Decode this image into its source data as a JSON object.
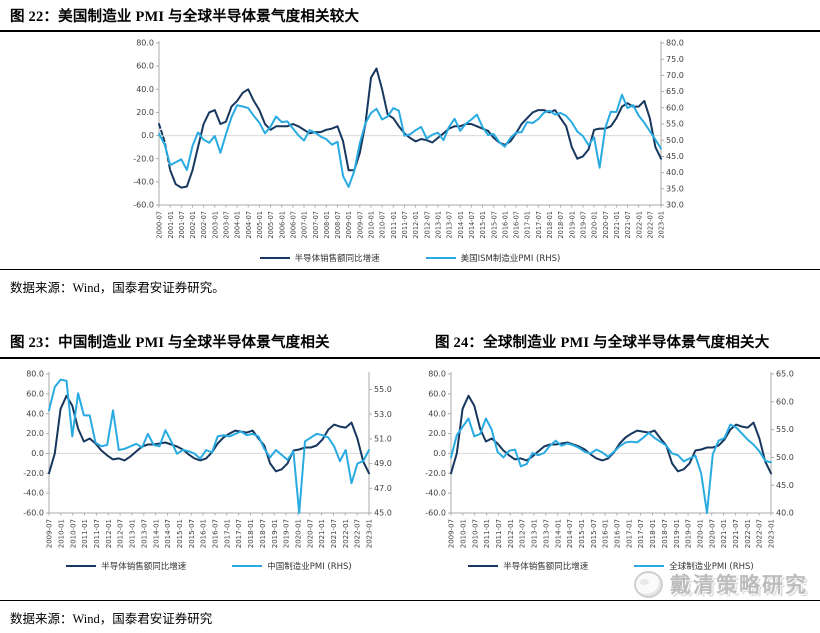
{
  "page": {
    "fig22_title": "图 22：美国制造业 PMI 与全球半导体景气度相关较大",
    "fig23_title": "图 23：中国制造业 PMI 与全球半导体景气度相关",
    "fig24_title": "图 24：全球制造业 PMI 与全球半导体景气度相关大",
    "source_top": "数据来源：Wind，国泰君安证券研究。",
    "source_bottom": "数据来源：Wind，国泰君安证券研究",
    "watermark": "戴清策略研究"
  },
  "colors": {
    "navy": "#17375E",
    "sky": "#29ABE2",
    "axis": "#ABABAB",
    "grid": "#D9D9D9",
    "tick_text": "#404040"
  },
  "chart_data": [
    {
      "type": "line",
      "title": "美国制造业PMI与全球半导体景气度",
      "x_start": "2000-07",
      "x_end": "2023-01",
      "sample_interval_months": 3,
      "left_range": [
        -60,
        80
      ],
      "left_ticks": [
        80,
        60,
        40,
        20,
        0,
        -20,
        -40,
        -60
      ],
      "right_range": [
        30,
        80
      ],
      "right_ticks": [
        80,
        75,
        70,
        65,
        60,
        55,
        50,
        45,
        40,
        35,
        30
      ],
      "grid_zero_line": true,
      "legend_position": "bottom",
      "x_labels": [
        "2000-07",
        "2001-01",
        "2001-07",
        "2002-01",
        "2002-07",
        "2003-01",
        "2003-07",
        "2004-01",
        "2004-07",
        "2005-01",
        "2005-07",
        "2006-01",
        "2006-07",
        "2007-01",
        "2007-07",
        "2008-01",
        "2008-07",
        "2009-01",
        "2009-07",
        "2010-01",
        "2010-07",
        "2011-01",
        "2011-07",
        "2012-01",
        "2012-07",
        "2013-01",
        "2013-07",
        "2014-01",
        "2014-07",
        "2015-01",
        "2015-07",
        "2016-01",
        "2016-07",
        "2017-01",
        "2017-07",
        "2018-01",
        "2018-07",
        "2019-01",
        "2019-07",
        "2020-01",
        "2020-07",
        "2021-01",
        "2021-07",
        "2022-01",
        "2022-07",
        "2023-01"
      ],
      "series": [
        {
          "name": "半导体销售额同比增速",
          "axis": "left",
          "color_key": "navy",
          "dash_prefix": 2,
          "values": [
            10,
            -5,
            -30,
            -42,
            -45,
            -44,
            -30,
            -10,
            10,
            20,
            22,
            10,
            12,
            25,
            30,
            37,
            40,
            30,
            22,
            10,
            5,
            8,
            8,
            8,
            10,
            8,
            5,
            2,
            3,
            3,
            5,
            6,
            8,
            -5,
            -30,
            -30,
            -15,
            10,
            50,
            58,
            40,
            18,
            15,
            8,
            2,
            -2,
            -5,
            -3,
            -4,
            -6,
            -2,
            2,
            6,
            8,
            8,
            10,
            10,
            8,
            6,
            4,
            -2,
            -6,
            -8,
            -5,
            2,
            10,
            15,
            20,
            22,
            22,
            20,
            22,
            15,
            8,
            -10,
            -20,
            -18,
            -12,
            5,
            6,
            6,
            8,
            15,
            25,
            28,
            25,
            25,
            30,
            15,
            -10,
            -20
          ]
        },
        {
          "name": "美国ISM制造业PMI (RHS)",
          "axis": "right",
          "color_key": "sky",
          "values": [
            52,
            48.7,
            42.3,
            43.2,
            44.1,
            40.8,
            48.2,
            52.4,
            50.2,
            49.2,
            51.3,
            46.1,
            51.8,
            57.1,
            60.8,
            60.4,
            59.9,
            57.5,
            55.4,
            52.1,
            54.2,
            57.3,
            55.6,
            55.8,
            53.6,
            51.5,
            49.9,
            53.1,
            52.3,
            51.1,
            50.3,
            48.6,
            49.5,
            38.9,
            35.6,
            40.4,
            49,
            55.2,
            58.4,
            59.7,
            56.4,
            57.3,
            59.9,
            59.1,
            51.4,
            51.8,
            53.1,
            54.1,
            50.5,
            51.7,
            52.3,
            50,
            54.1,
            56.6,
            52.9,
            55.1,
            56.4,
            57.9,
            54.1,
            51.6,
            51.9,
            49.4,
            48,
            50.7,
            52.3,
            52.5,
            55.6,
            55.3,
            56.5,
            58.5,
            59.1,
            57.9,
            58.4,
            57.5,
            55.5,
            52.7,
            51.3,
            48.5,
            50.9,
            41.5,
            53.7,
            58.8,
            58.7,
            64,
            59.9,
            60.8,
            57.6,
            55.4,
            52.8,
            50.2,
            47.4
          ]
        }
      ]
    },
    {
      "type": "line",
      "title": "中国制造业PMI与全球半导体景气度",
      "x_start": "2009-07",
      "x_end": "2023-01",
      "sample_interval_months": 3,
      "left_range": [
        -60,
        80
      ],
      "left_ticks": [
        80,
        60,
        40,
        20,
        0,
        -20,
        -40,
        -60
      ],
      "right_range": [
        45,
        56.25
      ],
      "right_ticks": [
        55,
        53,
        51,
        49,
        47,
        45
      ],
      "grid_zero_line": true,
      "legend_position": "bottom",
      "x_labels": [
        "2009-07",
        "2010-01",
        "2010-07",
        "2011-01",
        "2011-07",
        "2012-01",
        "2012-07",
        "2013-01",
        "2013-07",
        "2014-01",
        "2014-07",
        "2015-01",
        "2015-07",
        "2016-01",
        "2016-07",
        "2017-01",
        "2017-07",
        "2018-01",
        "2018-07",
        "2019-01",
        "2019-07",
        "2020-01",
        "2020-07",
        "2021-01",
        "2021-07",
        "2022-01",
        "2022-07",
        "2023-01"
      ],
      "series": [
        {
          "name": "半导体销售额同比增速",
          "axis": "left",
          "color_key": "navy",
          "values": [
            -20,
            0,
            45,
            58,
            48,
            25,
            12,
            15,
            10,
            3,
            -2,
            -6,
            -5,
            -7,
            -3,
            2,
            7,
            9,
            9,
            10,
            11,
            9,
            7,
            4,
            -1,
            -5,
            -7,
            -5,
            1,
            10,
            16,
            20,
            23,
            22,
            21,
            23,
            15,
            8,
            -10,
            -18,
            -16,
            -10,
            3,
            4,
            6,
            6,
            8,
            14,
            24,
            29,
            27,
            26,
            31,
            15,
            -8,
            -20
          ]
        },
        {
          "name": "中国制造业PMI (RHS)",
          "axis": "right",
          "color_key": "sky",
          "values": [
            53.3,
            55.2,
            55.8,
            55.7,
            51.2,
            54.7,
            52.9,
            52.9,
            50.7,
            50.4,
            50.5,
            53.3,
            50.1,
            50.2,
            50.4,
            50.6,
            50.3,
            51.4,
            50.5,
            50.4,
            51.7,
            50.8,
            49.8,
            50.1,
            50,
            49.8,
            49.4,
            50.1,
            49.9,
            51.2,
            51.3,
            51.2,
            51.4,
            51.6,
            51.3,
            51.4,
            51.2,
            50.2,
            49.5,
            50.1,
            49.7,
            49.3,
            50,
            35.7,
            50.8,
            51.1,
            51.4,
            51.3,
            51.1,
            50.4,
            49.2,
            50.1,
            47.4,
            49,
            49.2,
            50.1
          ]
        }
      ]
    },
    {
      "type": "line",
      "title": "全球制造业PMI与全球半导体景气度",
      "x_start": "2009-07",
      "x_end": "2023-01",
      "sample_interval_months": 3,
      "left_range": [
        -60,
        80
      ],
      "left_ticks": [
        80,
        60,
        40,
        20,
        0,
        -20,
        -40,
        -60
      ],
      "right_range": [
        40,
        65
      ],
      "right_ticks": [
        65,
        60,
        55,
        50,
        45,
        40
      ],
      "grid_zero_line": true,
      "legend_position": "bottom",
      "x_labels": [
        "2009-07",
        "2010-01",
        "2010-07",
        "2011-01",
        "2011-07",
        "2012-01",
        "2012-07",
        "2013-01",
        "2013-07",
        "2014-01",
        "2014-07",
        "2015-01",
        "2015-07",
        "2016-01",
        "2016-07",
        "2017-01",
        "2017-07",
        "2018-01",
        "2018-07",
        "2019-01",
        "2019-07",
        "2020-01",
        "2020-07",
        "2021-01",
        "2021-07",
        "2022-01",
        "2022-07",
        "2023-01"
      ],
      "series": [
        {
          "name": "半导体销售额同比增速",
          "axis": "left",
          "color_key": "navy",
          "values": [
            -20,
            0,
            45,
            58,
            48,
            25,
            12,
            15,
            10,
            3,
            -2,
            -6,
            -5,
            -7,
            -3,
            2,
            7,
            9,
            9,
            10,
            11,
            9,
            7,
            4,
            -1,
            -5,
            -7,
            -5,
            1,
            10,
            16,
            20,
            23,
            22,
            21,
            23,
            15,
            8,
            -10,
            -18,
            -16,
            -10,
            3,
            4,
            6,
            6,
            8,
            14,
            24,
            29,
            27,
            26,
            31,
            15,
            -8,
            -20
          ]
        },
        {
          "name": "全球制造业PMI (RHS)",
          "axis": "right",
          "color_key": "sky",
          "values": [
            50,
            54,
            55.5,
            57,
            53.8,
            54.2,
            57,
            55,
            51,
            50,
            51.2,
            51.4,
            48.4,
            48.8,
            50.8,
            50.4,
            50.8,
            52.1,
            53,
            52.1,
            52.5,
            52.2,
            51.7,
            51,
            50.7,
            51.4,
            50.9,
            50.1,
            51,
            52,
            52.7,
            52.8,
            52.7,
            53.5,
            54.4,
            53.5,
            52.8,
            52.1,
            50.7,
            50.4,
            49.3,
            49.8,
            50.3,
            47.1,
            39.6,
            50.6,
            53,
            53.5,
            55.9,
            55.4,
            54.3,
            53.2,
            52.3,
            51.1,
            49.4,
            49.1
          ]
        }
      ]
    }
  ]
}
